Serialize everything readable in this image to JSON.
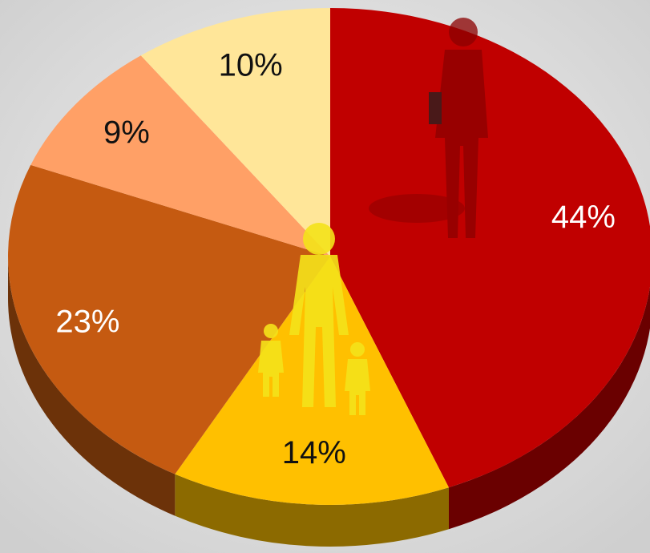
{
  "chart_data": {
    "type": "pie",
    "values": [
      44,
      14,
      23,
      9,
      10
    ],
    "value_labels": [
      "44%",
      "14%",
      "23%",
      "9%",
      "10%"
    ],
    "colors": [
      "#c00000",
      "#ffc000",
      "#c55a11",
      "#ffa066",
      "#ffe699"
    ]
  }
}
